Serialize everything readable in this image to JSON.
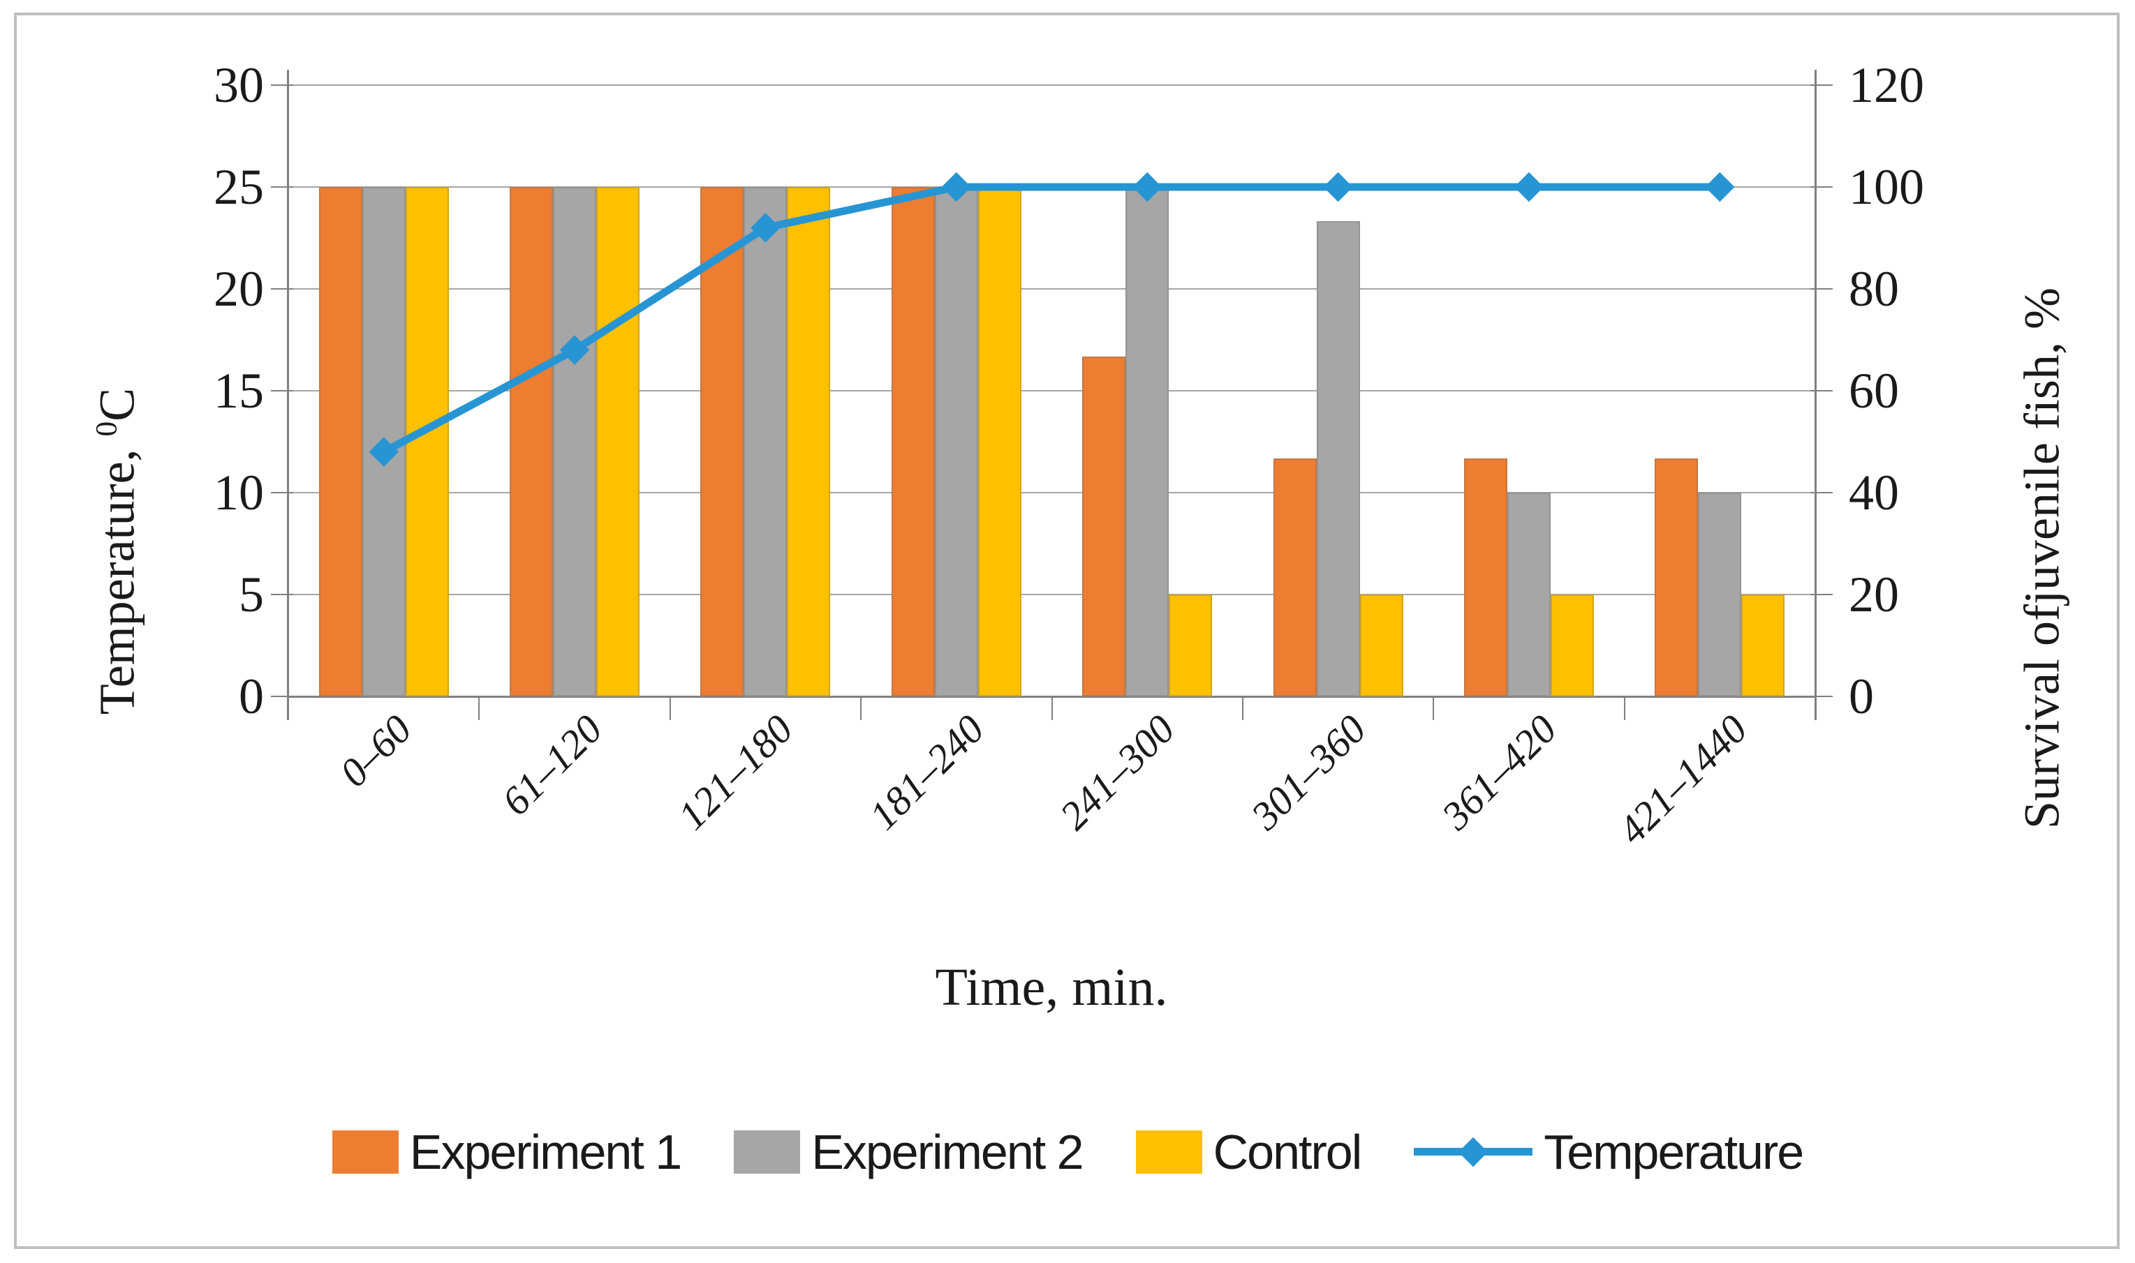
{
  "chart_data": {
    "type": "combo-bar-line",
    "categories": [
      "0–60",
      "61–120",
      "121–180",
      "181–240",
      "241–300",
      "301–360",
      "361–420",
      "421–1440"
    ],
    "xlabel": "Time, min.",
    "left_axis": {
      "label_prefix": "Temperature, ",
      "label_sup": "0",
      "label_suffix": "C",
      "range": [
        0,
        30
      ],
      "ticks": [
        30,
        25,
        20,
        15,
        10,
        5,
        0
      ]
    },
    "right_axis": {
      "label": "Survival ofjuvenile fish, %",
      "range": [
        0,
        120
      ],
      "ticks": [
        120,
        100,
        80,
        60,
        40,
        20,
        0
      ]
    },
    "grid": true,
    "legend_position": "bottom",
    "series": [
      {
        "name": "Experiment 1",
        "type": "bar",
        "axis": "right",
        "color": "#ED7D31",
        "values": [
          100,
          100,
          100,
          100,
          66.7,
          46.7,
          46.7,
          46.7
        ]
      },
      {
        "name": "Experiment 2",
        "type": "bar",
        "axis": "right",
        "color": "#A6A6A6",
        "values": [
          100,
          100,
          100,
          100,
          100,
          93.3,
          40,
          40
        ]
      },
      {
        "name": "Control",
        "type": "bar",
        "axis": "right",
        "color": "#FFC000",
        "values": [
          100,
          100,
          100,
          100,
          20,
          20,
          20,
          20
        ]
      },
      {
        "name": "Temperature",
        "type": "line",
        "axis": "left",
        "color": "#2795D3",
        "values": [
          12,
          17,
          23,
          25,
          25,
          25,
          25,
          25
        ]
      }
    ]
  },
  "styles": {
    "gridline_color": "#A6A6A6",
    "axis_color": "#808080",
    "border_color": "#BFBFBF",
    "text_color": "#1A1A1A"
  }
}
